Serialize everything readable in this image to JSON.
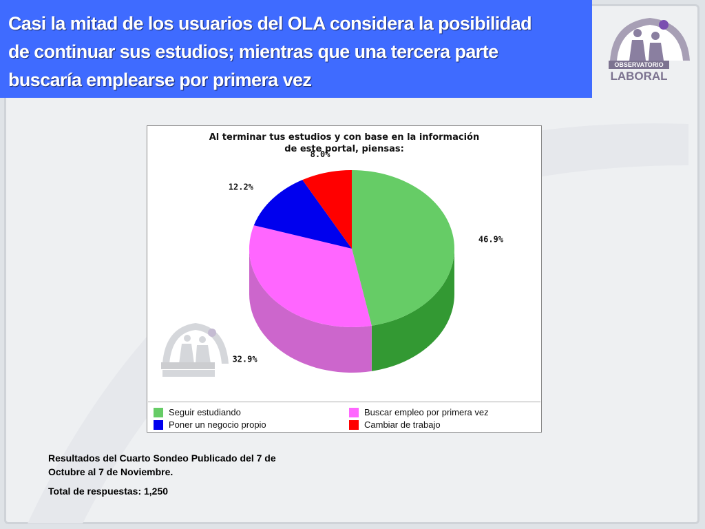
{
  "slide": {
    "title_line1": "Casi la mitad de los usuarios del OLA considera la posibilidad",
    "title_line2": "de continuar sus estudios; mientras que una tercera parte",
    "title_line3": "buscaría emplearse por primera vez",
    "title_bg": "#3f6bff",
    "footer_line1a": "Resultados del Cuarto Sondeo Publicado del 7 de",
    "footer_line1b": "Octubre al 7 de Noviembre.",
    "footer_line2": "Total de respuestas: 1,250"
  },
  "logo": {
    "line1": "OBSERVATORIO",
    "line2": "LABORAL"
  },
  "chart_data": {
    "type": "pie",
    "title_line1": "Al terminar tus estudios y con base en la información",
    "title_line2": "de este portal, piensas:",
    "legend_position": "bottom",
    "slices": [
      {
        "label": "Seguir estudiando",
        "value": 46.9,
        "value_label": "46.9%",
        "color": "#66cc66",
        "side_color": "#339933"
      },
      {
        "label": "Buscar empleo por primera vez",
        "value": 32.9,
        "value_label": "32.9%",
        "color": "#ff66ff",
        "side_color": "#cc66cc"
      },
      {
        "label": "Poner un negocio propio",
        "value": 12.2,
        "value_label": "12.2%",
        "color": "#0000ee",
        "side_color": "#0000aa"
      },
      {
        "label": "Cambiar de trabajo",
        "value": 8.0,
        "value_label": "8.0%",
        "color": "#ff0000",
        "side_color": "#bb0000"
      }
    ]
  }
}
